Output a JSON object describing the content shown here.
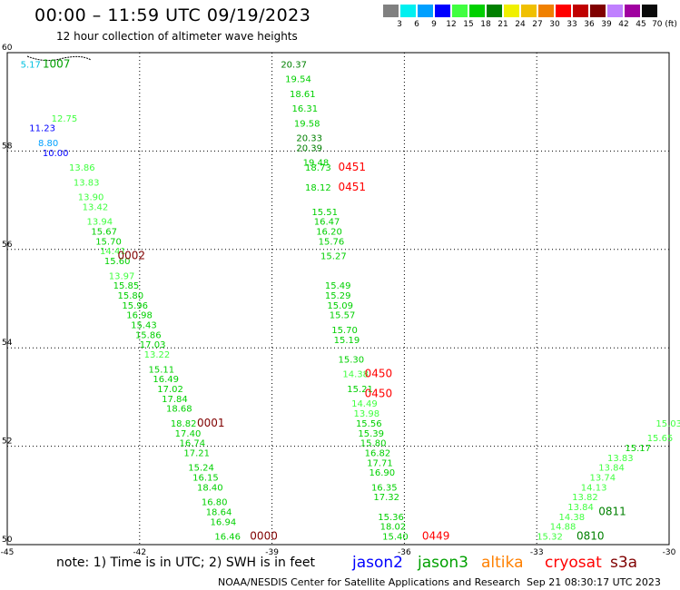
{
  "header": {
    "title": "00:00 – 11:59 UTC 09/19/2023",
    "subtitle": "12 hour collection of altimeter wave heights"
  },
  "legend": {
    "colors": [
      "#808080",
      "#00f0f0",
      "#00a0ff",
      "#0000ff",
      "#40ff40",
      "#00d000",
      "#008000",
      "#f0f000",
      "#f0c000",
      "#f08000",
      "#ff0000",
      "#c00000",
      "#800000",
      "#c080ff",
      "#a000a0",
      "#0a0a0a"
    ],
    "labels": [
      "3",
      "6",
      "9",
      "12",
      "15",
      "18",
      "21",
      "24",
      "27",
      "30",
      "33",
      "36",
      "39",
      "42",
      "45",
      "70 (ft)"
    ]
  },
  "footer": {
    "note": "note:  1) Time is in UTC;  2) SWH is in feet",
    "satellites": [
      {
        "name": "jason2",
        "color": "#0000ff"
      },
      {
        "name": "jason3",
        "color": "#00a000"
      },
      {
        "name": "altika",
        "color": "#ff8000"
      },
      {
        "name": "cryosat",
        "color": "#ff0000"
      },
      {
        "name": "s3a",
        "color": "#800000"
      }
    ],
    "credit": "NOAA/NESDIS Center for Satellite Applications and Research",
    "timestamp": "Sep 21 08:30:17 UTC 2023"
  },
  "chart_data": {
    "type": "scatter",
    "title": "00:00 – 11:59 UTC 09/19/2023",
    "subtitle": "12 hour collection of altimeter wave heights",
    "xlim": [
      -45,
      -30
    ],
    "ylim": [
      50,
      60
    ],
    "x_ticks": [
      "-45",
      "-42",
      "-39",
      "-36",
      "-33",
      "-30"
    ],
    "y_ticks": [
      "50",
      "52",
      "54",
      "56",
      "58",
      "60"
    ],
    "grid": true,
    "points": [
      {
        "lon": -44.7,
        "lat": 59.7,
        "v": "5.17",
        "c": "#00c0e0"
      },
      {
        "lon": -44.0,
        "lat": 58.6,
        "v": "12.75",
        "c": "#40ff40"
      },
      {
        "lon": -44.5,
        "lat": 58.4,
        "v": "11.23",
        "c": "#0000ff"
      },
      {
        "lon": -44.3,
        "lat": 58.1,
        "v": "8.80",
        "c": "#00a0ff"
      },
      {
        "lon": -44.2,
        "lat": 57.9,
        "v": "10.00",
        "c": "#0000ff"
      },
      {
        "lon": -43.6,
        "lat": 57.6,
        "v": "13.86",
        "c": "#40ff40"
      },
      {
        "lon": -43.5,
        "lat": 57.3,
        "v": "13.83",
        "c": "#40ff40"
      },
      {
        "lon": -43.4,
        "lat": 57.0,
        "v": "13.90",
        "c": "#40ff40"
      },
      {
        "lon": -43.3,
        "lat": 56.8,
        "v": "13.42",
        "c": "#40ff40"
      },
      {
        "lon": -43.2,
        "lat": 56.5,
        "v": "13.94",
        "c": "#40ff40"
      },
      {
        "lon": -43.1,
        "lat": 56.3,
        "v": "15.67",
        "c": "#00d000"
      },
      {
        "lon": -43.0,
        "lat": 56.1,
        "v": "15.70",
        "c": "#00d000"
      },
      {
        "lon": -42.9,
        "lat": 55.9,
        "v": "14.41",
        "c": "#40ff40"
      },
      {
        "lon": -42.8,
        "lat": 55.7,
        "v": "15.60",
        "c": "#00d000"
      },
      {
        "lon": -42.7,
        "lat": 55.4,
        "v": "13.97",
        "c": "#40ff40"
      },
      {
        "lon": -42.6,
        "lat": 55.2,
        "v": "15.85",
        "c": "#00d000"
      },
      {
        "lon": -42.5,
        "lat": 55.0,
        "v": "15.80",
        "c": "#00d000"
      },
      {
        "lon": -42.4,
        "lat": 54.8,
        "v": "15.96",
        "c": "#00d000"
      },
      {
        "lon": -42.3,
        "lat": 54.6,
        "v": "16.98",
        "c": "#00d000"
      },
      {
        "lon": -42.2,
        "lat": 54.4,
        "v": "15.43",
        "c": "#00d000"
      },
      {
        "lon": -42.1,
        "lat": 54.2,
        "v": "15.86",
        "c": "#00d000"
      },
      {
        "lon": -42.0,
        "lat": 54.0,
        "v": "17.03",
        "c": "#00d000"
      },
      {
        "lon": -41.9,
        "lat": 53.8,
        "v": "13.22",
        "c": "#40ff40"
      },
      {
        "lon": -41.8,
        "lat": 53.5,
        "v": "15.11",
        "c": "#00d000"
      },
      {
        "lon": -41.7,
        "lat": 53.3,
        "v": "16.49",
        "c": "#00d000"
      },
      {
        "lon": -41.6,
        "lat": 53.1,
        "v": "17.02",
        "c": "#00d000"
      },
      {
        "lon": -41.5,
        "lat": 52.9,
        "v": "17.84",
        "c": "#00d000"
      },
      {
        "lon": -41.4,
        "lat": 52.7,
        "v": "18.68",
        "c": "#00d000"
      },
      {
        "lon": -41.3,
        "lat": 52.4,
        "v": "18.82",
        "c": "#00d000"
      },
      {
        "lon": -41.2,
        "lat": 52.2,
        "v": "17.40",
        "c": "#00d000"
      },
      {
        "lon": -41.1,
        "lat": 52.0,
        "v": "16.74",
        "c": "#00d000"
      },
      {
        "lon": -41.0,
        "lat": 51.8,
        "v": "17.21",
        "c": "#00d000"
      },
      {
        "lon": -40.9,
        "lat": 51.5,
        "v": "15.24",
        "c": "#00d000"
      },
      {
        "lon": -40.8,
        "lat": 51.3,
        "v": "16.15",
        "c": "#00d000"
      },
      {
        "lon": -40.7,
        "lat": 51.1,
        "v": "18.40",
        "c": "#00d000"
      },
      {
        "lon": -40.6,
        "lat": 50.8,
        "v": "16.80",
        "c": "#00d000"
      },
      {
        "lon": -40.5,
        "lat": 50.6,
        "v": "18.64",
        "c": "#00d000"
      },
      {
        "lon": -40.4,
        "lat": 50.4,
        "v": "16.94",
        "c": "#00d000"
      },
      {
        "lon": -40.3,
        "lat": 50.1,
        "v": "16.46",
        "c": "#00d000"
      },
      {
        "lon": -38.8,
        "lat": 59.7,
        "v": "20.37",
        "c": "#008000"
      },
      {
        "lon": -38.7,
        "lat": 59.4,
        "v": "19.54",
        "c": "#00d000"
      },
      {
        "lon": -38.6,
        "lat": 59.1,
        "v": "18.61",
        "c": "#00d000"
      },
      {
        "lon": -38.55,
        "lat": 58.8,
        "v": "16.31",
        "c": "#00d000"
      },
      {
        "lon": -38.5,
        "lat": 58.5,
        "v": "19.58",
        "c": "#00d000"
      },
      {
        "lon": -38.45,
        "lat": 58.2,
        "v": "20.33",
        "c": "#008000"
      },
      {
        "lon": -38.45,
        "lat": 58.0,
        "v": "20.39",
        "c": "#008000"
      },
      {
        "lon": -38.3,
        "lat": 57.7,
        "v": "19.48",
        "c": "#00d000"
      },
      {
        "lon": -38.25,
        "lat": 57.6,
        "v": "18.73",
        "c": "#00d000"
      },
      {
        "lon": -38.25,
        "lat": 57.2,
        "v": "18.12",
        "c": "#00d000"
      },
      {
        "lon": -38.1,
        "lat": 56.7,
        "v": "15.51",
        "c": "#00d000"
      },
      {
        "lon": -38.05,
        "lat": 56.5,
        "v": "16.47",
        "c": "#00d000"
      },
      {
        "lon": -38.0,
        "lat": 56.3,
        "v": "16.20",
        "c": "#00d000"
      },
      {
        "lon": -37.95,
        "lat": 56.1,
        "v": "15.76",
        "c": "#00d000"
      },
      {
        "lon": -37.9,
        "lat": 55.8,
        "v": "15.27",
        "c": "#00d000"
      },
      {
        "lon": -37.8,
        "lat": 55.2,
        "v": "15.49",
        "c": "#00d000"
      },
      {
        "lon": -37.8,
        "lat": 55.0,
        "v": "15.29",
        "c": "#00d000"
      },
      {
        "lon": -37.75,
        "lat": 54.8,
        "v": "15.09",
        "c": "#00d000"
      },
      {
        "lon": -37.7,
        "lat": 54.6,
        "v": "15.57",
        "c": "#00d000"
      },
      {
        "lon": -37.65,
        "lat": 54.3,
        "v": "15.70",
        "c": "#00d000"
      },
      {
        "lon": -37.6,
        "lat": 54.1,
        "v": "15.19",
        "c": "#00d000"
      },
      {
        "lon": -37.5,
        "lat": 53.7,
        "v": "15.30",
        "c": "#00d000"
      },
      {
        "lon": -37.4,
        "lat": 53.4,
        "v": "14.38",
        "c": "#40ff40"
      },
      {
        "lon": -37.3,
        "lat": 53.1,
        "v": "15.21",
        "c": "#00d000"
      },
      {
        "lon": -37.2,
        "lat": 52.8,
        "v": "14.49",
        "c": "#40ff40"
      },
      {
        "lon": -37.15,
        "lat": 52.6,
        "v": "13.98",
        "c": "#40ff40"
      },
      {
        "lon": -37.1,
        "lat": 52.4,
        "v": "15.56",
        "c": "#00d000"
      },
      {
        "lon": -37.05,
        "lat": 52.2,
        "v": "15.39",
        "c": "#00d000"
      },
      {
        "lon": -37.0,
        "lat": 52.0,
        "v": "15.80",
        "c": "#00d000"
      },
      {
        "lon": -36.9,
        "lat": 51.8,
        "v": "16.82",
        "c": "#00d000"
      },
      {
        "lon": -36.85,
        "lat": 51.6,
        "v": "17.71",
        "c": "#00d000"
      },
      {
        "lon": -36.8,
        "lat": 51.4,
        "v": "16.90",
        "c": "#00d000"
      },
      {
        "lon": -36.75,
        "lat": 51.1,
        "v": "16.35",
        "c": "#00d000"
      },
      {
        "lon": -36.7,
        "lat": 50.9,
        "v": "17.32",
        "c": "#00d000"
      },
      {
        "lon": -36.6,
        "lat": 50.5,
        "v": "15.36",
        "c": "#00d000"
      },
      {
        "lon": -36.55,
        "lat": 50.3,
        "v": "18.02",
        "c": "#00d000"
      },
      {
        "lon": -36.5,
        "lat": 50.1,
        "v": "15.40",
        "c": "#00d000"
      },
      {
        "lon": -33.0,
        "lat": 50.1,
        "v": "15.32",
        "c": "#40ff40"
      },
      {
        "lon": -32.7,
        "lat": 50.3,
        "v": "14.88",
        "c": "#40ff40"
      },
      {
        "lon": -32.5,
        "lat": 50.5,
        "v": "14.38",
        "c": "#40ff40"
      },
      {
        "lon": -32.3,
        "lat": 50.7,
        "v": "13.84",
        "c": "#40ff40"
      },
      {
        "lon": -32.2,
        "lat": 50.9,
        "v": "13.82",
        "c": "#40ff40"
      },
      {
        "lon": -32.0,
        "lat": 51.1,
        "v": "14.13",
        "c": "#40ff40"
      },
      {
        "lon": -31.8,
        "lat": 51.3,
        "v": "13.74",
        "c": "#40ff40"
      },
      {
        "lon": -31.6,
        "lat": 51.5,
        "v": "13.84",
        "c": "#40ff40"
      },
      {
        "lon": -31.4,
        "lat": 51.7,
        "v": "13.83",
        "c": "#40ff40"
      },
      {
        "lon": -31.0,
        "lat": 51.9,
        "v": "15.17",
        "c": "#00d000"
      },
      {
        "lon": -30.5,
        "lat": 52.1,
        "v": "15.65",
        "c": "#40ff40"
      },
      {
        "lon": -30.3,
        "lat": 52.4,
        "v": "15.03",
        "c": "#40ff40"
      }
    ],
    "time_labels": [
      {
        "lon": -44.2,
        "lat": 59.7,
        "t": "1007",
        "c": "#00a000"
      },
      {
        "lon": -42.5,
        "lat": 55.8,
        "t": "0002",
        "c": "#800000"
      },
      {
        "lon": -40.7,
        "lat": 52.4,
        "t": "0001",
        "c": "#800000"
      },
      {
        "lon": -39.5,
        "lat": 50.1,
        "t": "0000",
        "c": "#800000"
      },
      {
        "lon": -37.5,
        "lat": 57.6,
        "t": "0451",
        "c": "#ff0000"
      },
      {
        "lon": -37.5,
        "lat": 57.2,
        "t": "0451",
        "c": "#ff0000"
      },
      {
        "lon": -36.9,
        "lat": 53.4,
        "t": "0450",
        "c": "#ff0000"
      },
      {
        "lon": -36.9,
        "lat": 53.0,
        "t": "0450",
        "c": "#ff0000"
      },
      {
        "lon": -35.6,
        "lat": 50.1,
        "t": "0449",
        "c": "#ff0000"
      },
      {
        "lon": -31.6,
        "lat": 50.6,
        "t": "0811",
        "c": "#008000"
      },
      {
        "lon": -32.1,
        "lat": 50.1,
        "t": "0810",
        "c": "#008000"
      }
    ]
  }
}
